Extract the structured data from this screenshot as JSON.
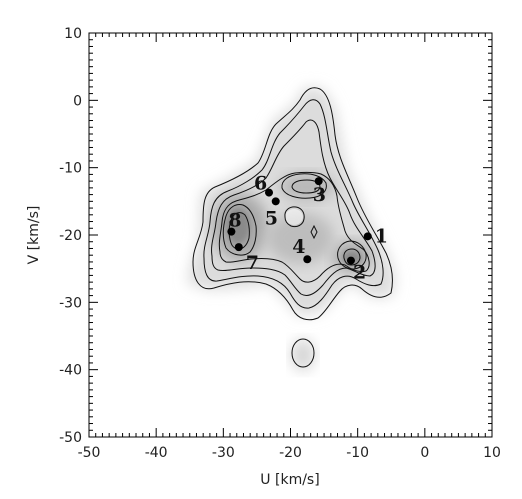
{
  "chart_data": {
    "type": "scatter",
    "title": "",
    "xlabel": "U  [km/s]",
    "ylabel": "V  [km/s]",
    "xlim": [
      -50,
      10
    ],
    "ylim": [
      -50,
      10
    ],
    "xticks": [
      -50,
      -40,
      -30,
      -20,
      -10,
      0,
      10
    ],
    "yticks": [
      -50,
      -40,
      -30,
      -20,
      -10,
      0,
      10
    ],
    "grid": false,
    "background": "grayscale density map with contour lines",
    "points": [
      {
        "label": "1",
        "x": -8.5,
        "y": -20.2
      },
      {
        "label": "2",
        "x": -11.0,
        "y": -23.8
      },
      {
        "label": "3",
        "x": -15.8,
        "y": -12.0
      },
      {
        "label": "4",
        "x": -17.5,
        "y": -23.6
      },
      {
        "label": "5",
        "x": -22.2,
        "y": -15.0
      },
      {
        "label": "6",
        "x": -23.2,
        "y": -13.7
      },
      {
        "label": "7",
        "x": -27.7,
        "y": -21.8
      },
      {
        "label": "8",
        "x": -28.8,
        "y": -19.5
      }
    ],
    "colors": {
      "marker": "#000000",
      "contour": "#111111",
      "axis": "#000000"
    }
  }
}
